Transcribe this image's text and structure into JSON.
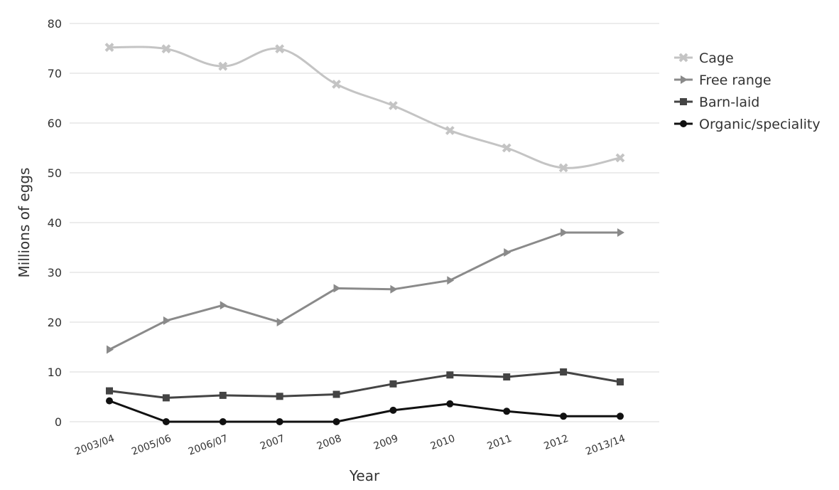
{
  "chart_data": {
    "type": "line",
    "title": "",
    "xlabel": "Year",
    "ylabel": "Millions of eggs",
    "ylim": [
      0,
      80
    ],
    "yticks": [
      0,
      10,
      20,
      30,
      40,
      50,
      60,
      70,
      80
    ],
    "grid": true,
    "legend_position": "top-right",
    "categories": [
      "2003/04",
      "2005/06",
      "2006/07",
      "2007",
      "2008",
      "2009",
      "2010",
      "2011",
      "2012",
      "2013/14"
    ],
    "series": [
      {
        "name": "Cage",
        "color": "#c4c4c4",
        "marker": "x",
        "values": [
          75.2,
          74.9,
          71.4,
          74.9,
          67.8,
          63.5,
          58.5,
          55.0,
          51.0,
          53.0
        ]
      },
      {
        "name": "Free range",
        "color": "#8a8a8a",
        "marker": "triangle-right",
        "values": [
          14.5,
          20.3,
          23.4,
          20.0,
          26.8,
          26.6,
          28.4,
          34.0,
          38.0,
          38.0
        ]
      },
      {
        "name": "Barn-laid",
        "color": "#444444",
        "marker": "square",
        "values": [
          6.2,
          4.8,
          5.3,
          5.1,
          5.5,
          7.6,
          9.4,
          9.0,
          10.0,
          8.0
        ]
      },
      {
        "name": "Organic/speciality",
        "color": "#111111",
        "marker": "circle",
        "values": [
          4.2,
          0.0,
          0.0,
          0.0,
          0.0,
          2.3,
          3.6,
          2.1,
          1.1,
          1.1
        ]
      }
    ]
  }
}
